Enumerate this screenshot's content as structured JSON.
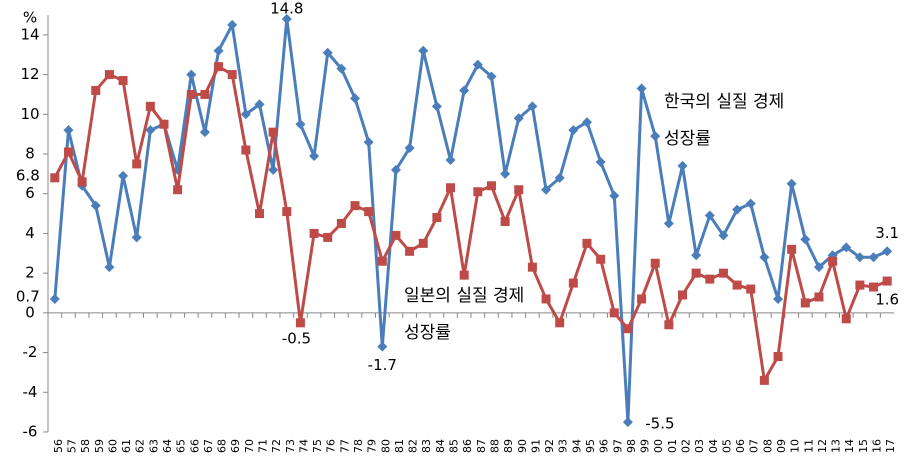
{
  "chart_data": {
    "type": "line",
    "y_label": "%",
    "categories": [
      "56",
      "57",
      "58",
      "59",
      "60",
      "61",
      "62",
      "63",
      "64",
      "65",
      "66",
      "67",
      "68",
      "69",
      "70",
      "71",
      "72",
      "73",
      "74",
      "75",
      "76",
      "77",
      "78",
      "79",
      "80",
      "81",
      "82",
      "83",
      "84",
      "85",
      "86",
      "87",
      "88",
      "89",
      "90",
      "91",
      "92",
      "93",
      "94",
      "95",
      "96",
      "97",
      "98",
      "99",
      "00",
      "01",
      "02",
      "03",
      "04",
      "05",
      "06",
      "07",
      "08",
      "09",
      "10",
      "11",
      "12",
      "13",
      "14",
      "15",
      "16",
      "17"
    ],
    "series": [
      {
        "name": "한국의 실질 경제성장률",
        "color": "#4a7ebb",
        "marker": "diamond",
        "values": [
          0.7,
          9.2,
          6.4,
          5.4,
          2.3,
          6.9,
          3.8,
          9.2,
          9.5,
          7.2,
          12.0,
          9.1,
          13.2,
          14.5,
          10.0,
          10.5,
          7.2,
          14.8,
          9.5,
          7.9,
          13.1,
          12.3,
          10.8,
          8.6,
          -1.7,
          7.2,
          8.3,
          13.2,
          10.4,
          7.7,
          11.2,
          12.5,
          11.9,
          7.0,
          9.8,
          10.4,
          6.2,
          6.8,
          9.2,
          9.6,
          7.6,
          5.9,
          -5.5,
          11.3,
          8.9,
          4.5,
          7.4,
          2.9,
          4.9,
          3.9,
          5.2,
          5.5,
          2.8,
          0.7,
          6.5,
          3.7,
          2.3,
          2.9,
          3.3,
          2.8,
          2.8,
          3.1
        ],
        "value_labels": [
          "0.7",
          null,
          null,
          null,
          null,
          null,
          null,
          null,
          null,
          null,
          null,
          null,
          null,
          null,
          null,
          null,
          null,
          "14.8",
          null,
          null,
          null,
          null,
          null,
          null,
          "-1.7",
          null,
          null,
          null,
          null,
          null,
          null,
          null,
          null,
          null,
          null,
          null,
          null,
          null,
          null,
          null,
          null,
          null,
          "-5.5",
          null,
          null,
          null,
          null,
          null,
          null,
          null,
          null,
          null,
          null,
          null,
          null,
          null,
          null,
          null,
          null,
          null,
          null,
          "3.1"
        ]
      },
      {
        "name": "일본의 실질 경제성장률",
        "color": "#be4b48",
        "marker": "square",
        "values": [
          6.8,
          8.1,
          6.6,
          11.2,
          12.0,
          11.7,
          7.5,
          10.4,
          9.5,
          6.2,
          11.0,
          11.0,
          12.4,
          12.0,
          8.2,
          5.0,
          9.1,
          5.1,
          -0.5,
          4.0,
          3.8,
          4.5,
          5.4,
          5.1,
          2.6,
          3.9,
          3.1,
          3.5,
          4.8,
          6.3,
          1.9,
          6.1,
          6.4,
          4.6,
          6.2,
          2.3,
          0.7,
          -0.5,
          1.5,
          3.5,
          2.7,
          0.0,
          -0.8,
          0.7,
          2.5,
          -0.6,
          0.9,
          2.0,
          1.7,
          2.0,
          1.4,
          1.2,
          -3.4,
          -2.2,
          3.2,
          0.5,
          0.8,
          2.6,
          -0.3,
          1.4,
          1.3,
          1.6
        ],
        "value_labels": [
          "6.8",
          null,
          null,
          null,
          null,
          null,
          null,
          null,
          null,
          null,
          null,
          null,
          null,
          null,
          null,
          null,
          null,
          null,
          "-0.5",
          null,
          null,
          null,
          null,
          null,
          null,
          null,
          null,
          null,
          null,
          null,
          null,
          null,
          null,
          null,
          null,
          null,
          null,
          null,
          null,
          null,
          null,
          null,
          null,
          null,
          null,
          null,
          null,
          null,
          null,
          null,
          null,
          null,
          null,
          null,
          null,
          null,
          null,
          null,
          null,
          null,
          null,
          "1.6"
        ]
      }
    ],
    "ylim": [
      -6,
      15
    ],
    "yticks": [
      -6,
      -4,
      -2,
      0,
      2,
      4,
      6,
      8,
      10,
      12,
      14
    ],
    "grid": false
  }
}
